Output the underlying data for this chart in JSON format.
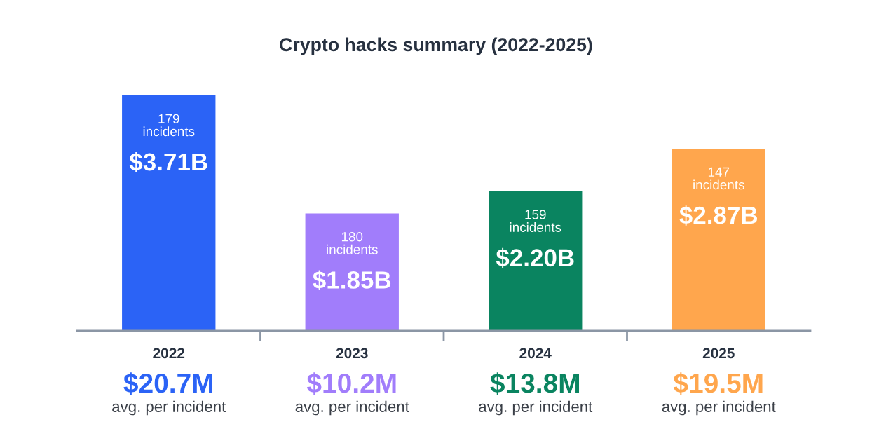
{
  "chart_data": {
    "type": "bar",
    "title": "Crypto hacks summary (2022-2025)",
    "categories": [
      "2022",
      "2023",
      "2024",
      "2025"
    ],
    "values": [
      3.71,
      1.85,
      2.2,
      2.87
    ],
    "colors": [
      "#2b63f6",
      "#a17dfb",
      "#0a8460",
      "#ffa64d"
    ],
    "value_labels": [
      "$3.71B",
      "$1.85B",
      "$2.20B",
      "$2.87B"
    ],
    "annotations": [
      {
        "text": "179\nincidents",
        "x": "2022",
        "y": 3.71
      },
      {
        "text": "180\nincidents",
        "x": "2023",
        "y": 1.85
      },
      {
        "text": "159\nincidents",
        "x": "2024",
        "y": 2.2
      },
      {
        "text": "147\nincidents",
        "x": "2025",
        "y": 2.87
      },
      "$20.7M",
      "avg. per incident",
      "$10.2M",
      "avg. per incident",
      "$13.8M",
      "avg. per incident",
      "$19.5M",
      "avg. per incident"
    ]
  }
}
